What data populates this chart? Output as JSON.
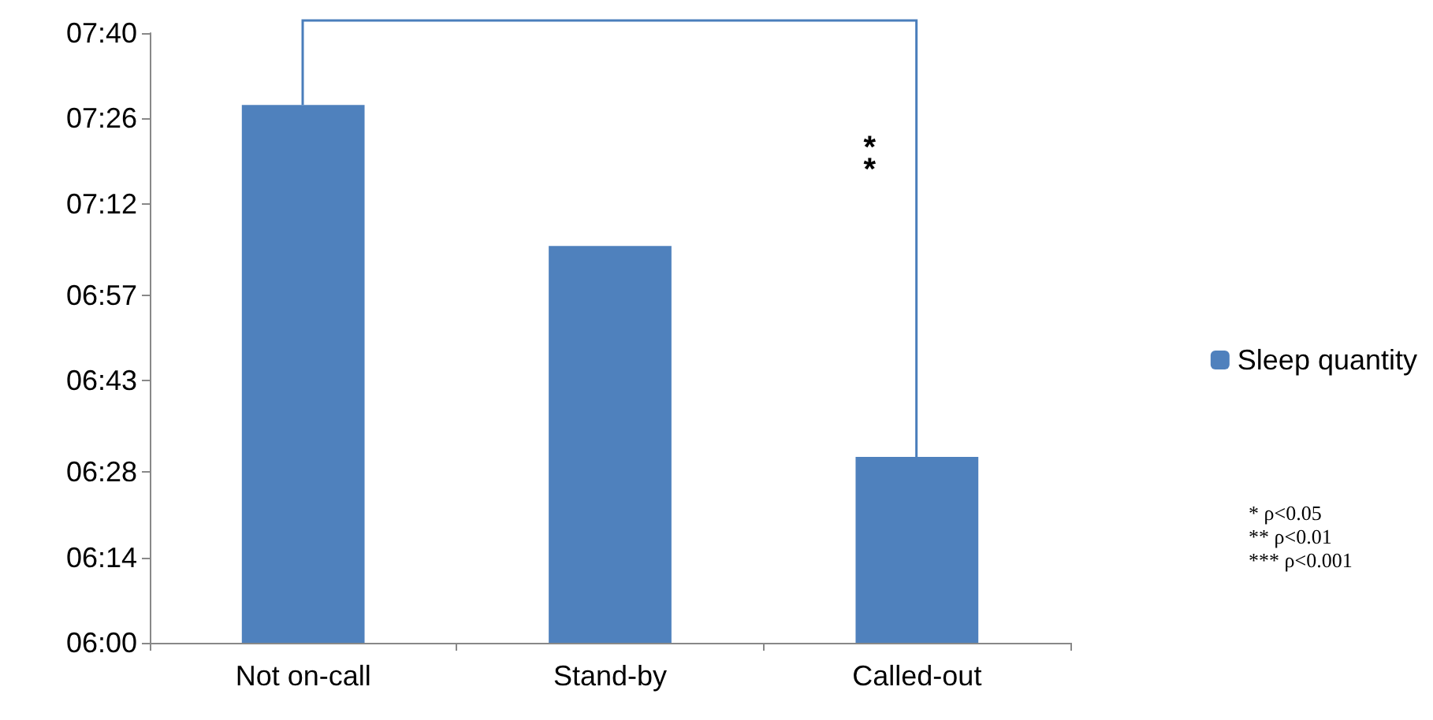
{
  "chart_data": {
    "type": "bar",
    "categories": [
      "Not on-call",
      "Stand-by",
      "Called-out"
    ],
    "series": [
      {
        "name": "Sleep quantity",
        "color": "#4f81bd",
        "values": [
          7.47,
          7.085,
          6.508
        ]
      }
    ],
    "ylim": [
      6,
      7.6667
    ],
    "yticks": [
      {
        "value": 6,
        "label": "06:00"
      },
      {
        "value": 6.2333,
        "label": "06:14"
      },
      {
        "value": 6.4667,
        "label": "06:28"
      },
      {
        "value": 6.7167,
        "label": "06:43"
      },
      {
        "value": 6.95,
        "label": "06:57"
      },
      {
        "value": 7.2,
        "label": "07:12"
      },
      {
        "value": 7.4333,
        "label": "07:26"
      },
      {
        "value": 7.6667,
        "label": "07:40"
      }
    ],
    "grid": false,
    "legend": "right",
    "annotations": [
      "**",
      "* ρ<0.05",
      "** ρ<0.01",
      "*** ρ<0.001"
    ]
  }
}
